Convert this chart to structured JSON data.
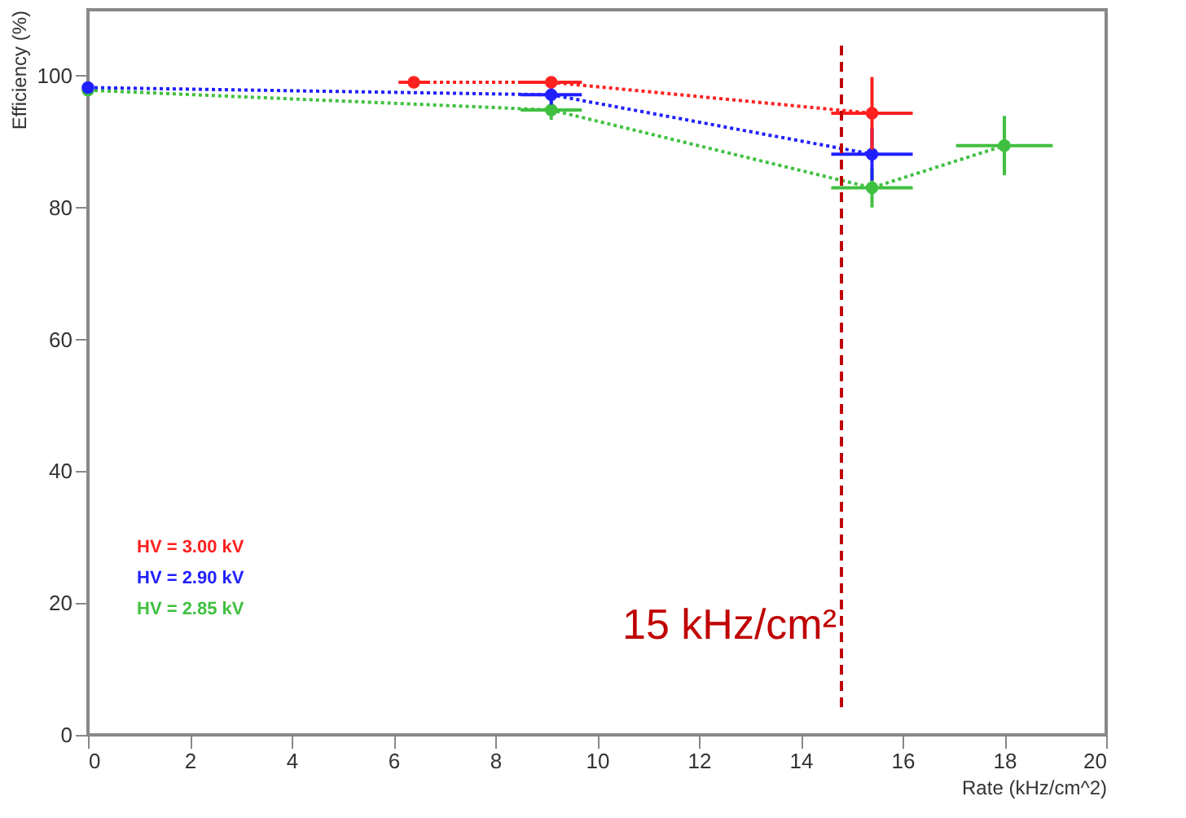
{
  "chart_data": {
    "type": "line",
    "xlabel": "Rate (kHz/cm^2)",
    "ylabel": "Efficiency (%)",
    "xlim": [
      0,
      20
    ],
    "xticks": [
      0,
      2,
      4,
      6,
      8,
      10,
      12,
      14,
      16,
      18,
      20
    ],
    "ylim": [
      0,
      110
    ],
    "yticks": [
      0,
      20,
      40,
      60,
      80,
      100
    ],
    "grid": false,
    "legend": "bottom left",
    "marker": "circle",
    "line_style": "dotted",
    "series": [
      {
        "name": "HV = 3.00 kV",
        "color": "#ff2020",
        "x": [
          6.4,
          9.1,
          15.4
        ],
        "values": [
          99.0,
          99.0,
          94.3
        ],
        "errors": [
          0.5,
          0.5,
          5.5
        ],
        "xerrors": [
          0.3,
          0.6,
          0.8
        ]
      },
      {
        "name": "HV = 2.90 kV",
        "color": "#2020ff",
        "x": [
          0,
          9.1,
          15.4
        ],
        "values": [
          98.2,
          97.1,
          88.1
        ],
        "errors": [
          0.5,
          1.5,
          4
        ],
        "xerrors": [
          null,
          0.6,
          0.8
        ]
      },
      {
        "name": "HV = 2.85 kV",
        "color": "#40c040",
        "x": [
          0,
          9.1,
          15.4,
          18.0
        ],
        "values": [
          97.8,
          94.8,
          83.0,
          89.4
        ],
        "errors": [
          null,
          1.5,
          3,
          4.5
        ],
        "xerrors": [
          null,
          0.6,
          0.8,
          0.95
        ]
      }
    ],
    "ref_lines": [
      {
        "axis": "x",
        "value": 14.8,
        "label": "15 kHz/cm²",
        "color": "#c00000",
        "line_style": "dashed"
      }
    ]
  }
}
